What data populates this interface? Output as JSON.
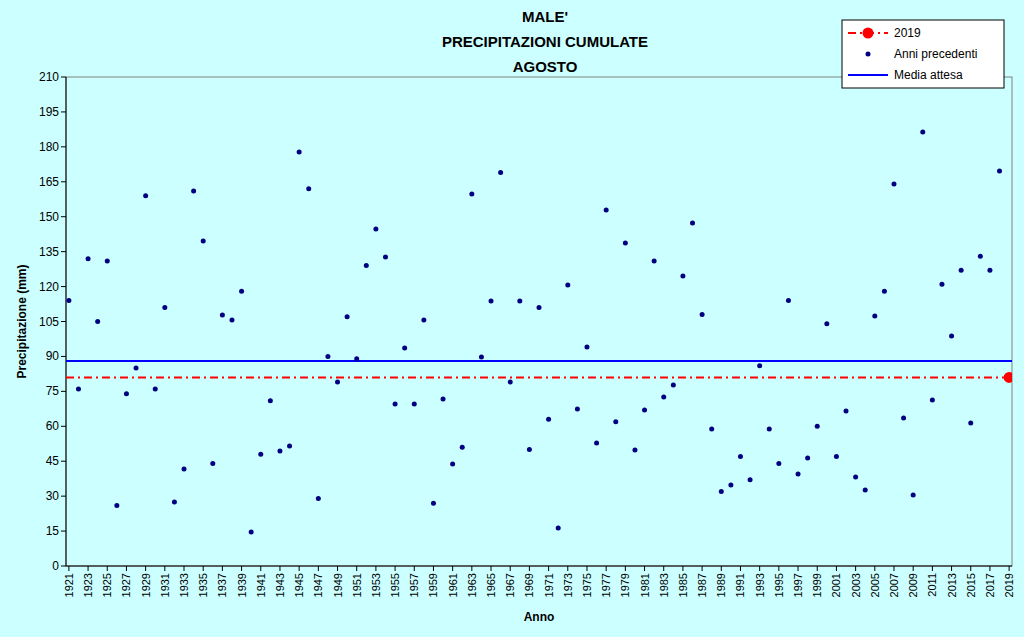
{
  "chart_data": {
    "type": "scatter",
    "title": [
      "MALE'",
      "PRECIPITAZIONI CUMULATE",
      "AGOSTO"
    ],
    "x_label": "Anno",
    "y_label": "Precipitazione (mm)",
    "xlim": [
      1920.7,
      2019.3
    ],
    "xticks": [
      1921,
      1923,
      1925,
      1927,
      1929,
      1931,
      1933,
      1935,
      1937,
      1939,
      1941,
      1943,
      1945,
      1947,
      1949,
      1951,
      1953,
      1955,
      1957,
      1959,
      1961,
      1963,
      1965,
      1967,
      1969,
      1971,
      1973,
      1975,
      1977,
      1979,
      1981,
      1983,
      1985,
      1987,
      1989,
      1991,
      1993,
      1995,
      1997,
      1999,
      2001,
      2003,
      2005,
      2007,
      2009,
      2011,
      2013,
      2015,
      2017,
      2019
    ],
    "ylim": [
      0,
      210
    ],
    "yticks": [
      0,
      15,
      30,
      45,
      60,
      75,
      90,
      105,
      120,
      135,
      150,
      165,
      180,
      195,
      210
    ],
    "grid": false,
    "legend": "top-right",
    "series": [
      {
        "name": "2019",
        "type": "scatter",
        "color": "#ff0000",
        "marker": "circle",
        "line_style": "dashed",
        "x": [
          2019
        ],
        "values": [
          81
        ]
      },
      {
        "name": "Anni precedenti",
        "type": "scatter",
        "color": "#000080",
        "marker": "circle",
        "x": [
          1921,
          1922,
          1923,
          1924,
          1925,
          1926,
          1927,
          1928,
          1929,
          1930,
          1931,
          1932,
          1933,
          1934,
          1935,
          1936,
          1937,
          1938,
          1939,
          1940,
          1941,
          1942,
          1943,
          1944,
          1945,
          1946,
          1947,
          1948,
          1949,
          1950,
          1951,
          1952,
          1953,
          1954,
          1955,
          1956,
          1957,
          1958,
          1959,
          1960,
          1961,
          1962,
          1963,
          1964,
          1965,
          1966,
          1967,
          1968,
          1969,
          1970,
          1971,
          1972,
          1973,
          1974,
          1975,
          1976,
          1977,
          1978,
          1979,
          1980,
          1981,
          1982,
          1983,
          1984,
          1985,
          1986,
          1987,
          1988,
          1989,
          1990,
          1991,
          1992,
          1993,
          1994,
          1995,
          1996,
          1997,
          1998,
          1999,
          2000,
          2001,
          2002,
          2003,
          2004,
          2005,
          2006,
          2007,
          2008,
          2009,
          2010,
          2011,
          2012,
          2013,
          2014,
          2015,
          2016,
          2017,
          2018
        ],
        "values": [
          114,
          76,
          132,
          105,
          131,
          26,
          74,
          85,
          159,
          76,
          111,
          27.5,
          41.7,
          161,
          139.6,
          44,
          107.8,
          105.6,
          118,
          14.6,
          48,
          71,
          49.4,
          51.5,
          177.8,
          162,
          29,
          90,
          79,
          107,
          89,
          129,
          144.7,
          132.7,
          69.6,
          93.6,
          69.6,
          105.6,
          27,
          71.7,
          43.8,
          51,
          159.8,
          89.8,
          113.8,
          169,
          79,
          113.8,
          50,
          111,
          63,
          16.3,
          120.7,
          67.4,
          94,
          52.8,
          152.9,
          62,
          138.7,
          49.8,
          67,
          131,
          72.6,
          77.7,
          124.5,
          147.3,
          108,
          58.8,
          32,
          34.8,
          47,
          37,
          86,
          58.8,
          44,
          114,
          39.5,
          46.4,
          60,
          104,
          47,
          66.6,
          38.2,
          32.6,
          107.4,
          118,
          164,
          63.6,
          30.5,
          186.4,
          71.3,
          121,
          98.8,
          127,
          61.4,
          133,
          127,
          169.6
        ]
      },
      {
        "name": "Media attesa",
        "type": "hline",
        "color": "#0000ff",
        "line_style": "solid",
        "values": [
          88
        ]
      }
    ]
  }
}
